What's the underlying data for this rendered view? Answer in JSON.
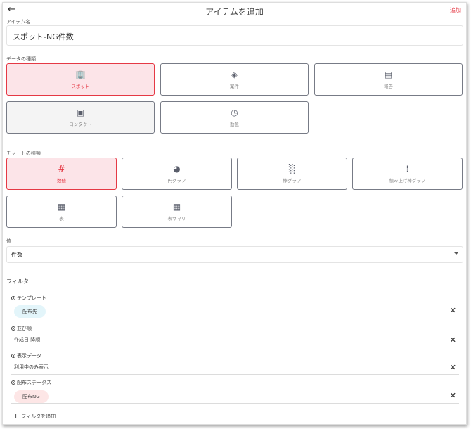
{
  "header": {
    "title": "アイテムを追加",
    "add_label": "追加",
    "back_icon": "arrow-left-icon"
  },
  "item_name": {
    "label": "アイテム名",
    "value": "スポット-NG件数"
  },
  "data_type": {
    "label": "データの種類",
    "options": [
      {
        "label": "スポット",
        "icon": "building-icon",
        "selected": true
      },
      {
        "label": "案件",
        "icon": "tag-icon"
      },
      {
        "label": "報告",
        "icon": "note-icon"
      },
      {
        "label": "コンタクト",
        "icon": "contact-card-icon"
      },
      {
        "label": "勤怠",
        "icon": "timecard-icon"
      }
    ]
  },
  "chart_type": {
    "label": "チャートの種類",
    "options": [
      {
        "label": "数値",
        "icon": "hash-icon",
        "selected": true
      },
      {
        "label": "円グラフ",
        "icon": "pie-chart-icon"
      },
      {
        "label": "棒グラフ",
        "icon": "bar-chart-icon"
      },
      {
        "label": "積み上げ棒グラフ",
        "icon": "stacked-bar-chart-icon"
      },
      {
        "label": "表",
        "icon": "table-icon"
      },
      {
        "label": "表サマリ",
        "icon": "table-summary-icon"
      }
    ]
  },
  "value": {
    "label": "値",
    "selected": "件数"
  },
  "filters": {
    "label": "フィルタ",
    "items": [
      {
        "title": "テンプレート",
        "value": "配布先",
        "chip": true,
        "chip_color": "#e3f5fa"
      },
      {
        "title": "並び順",
        "value": "作成日 降順"
      },
      {
        "title": "表示データ",
        "value": "利用中のみ表示"
      },
      {
        "title": "配布ステータス",
        "value": "配布NG",
        "chip": true,
        "chip_color": "#fde6e6"
      }
    ],
    "add_label": "フィルタを追加"
  },
  "colors": {
    "accent": "#e53945",
    "selected_bg": "#fce4e8"
  }
}
